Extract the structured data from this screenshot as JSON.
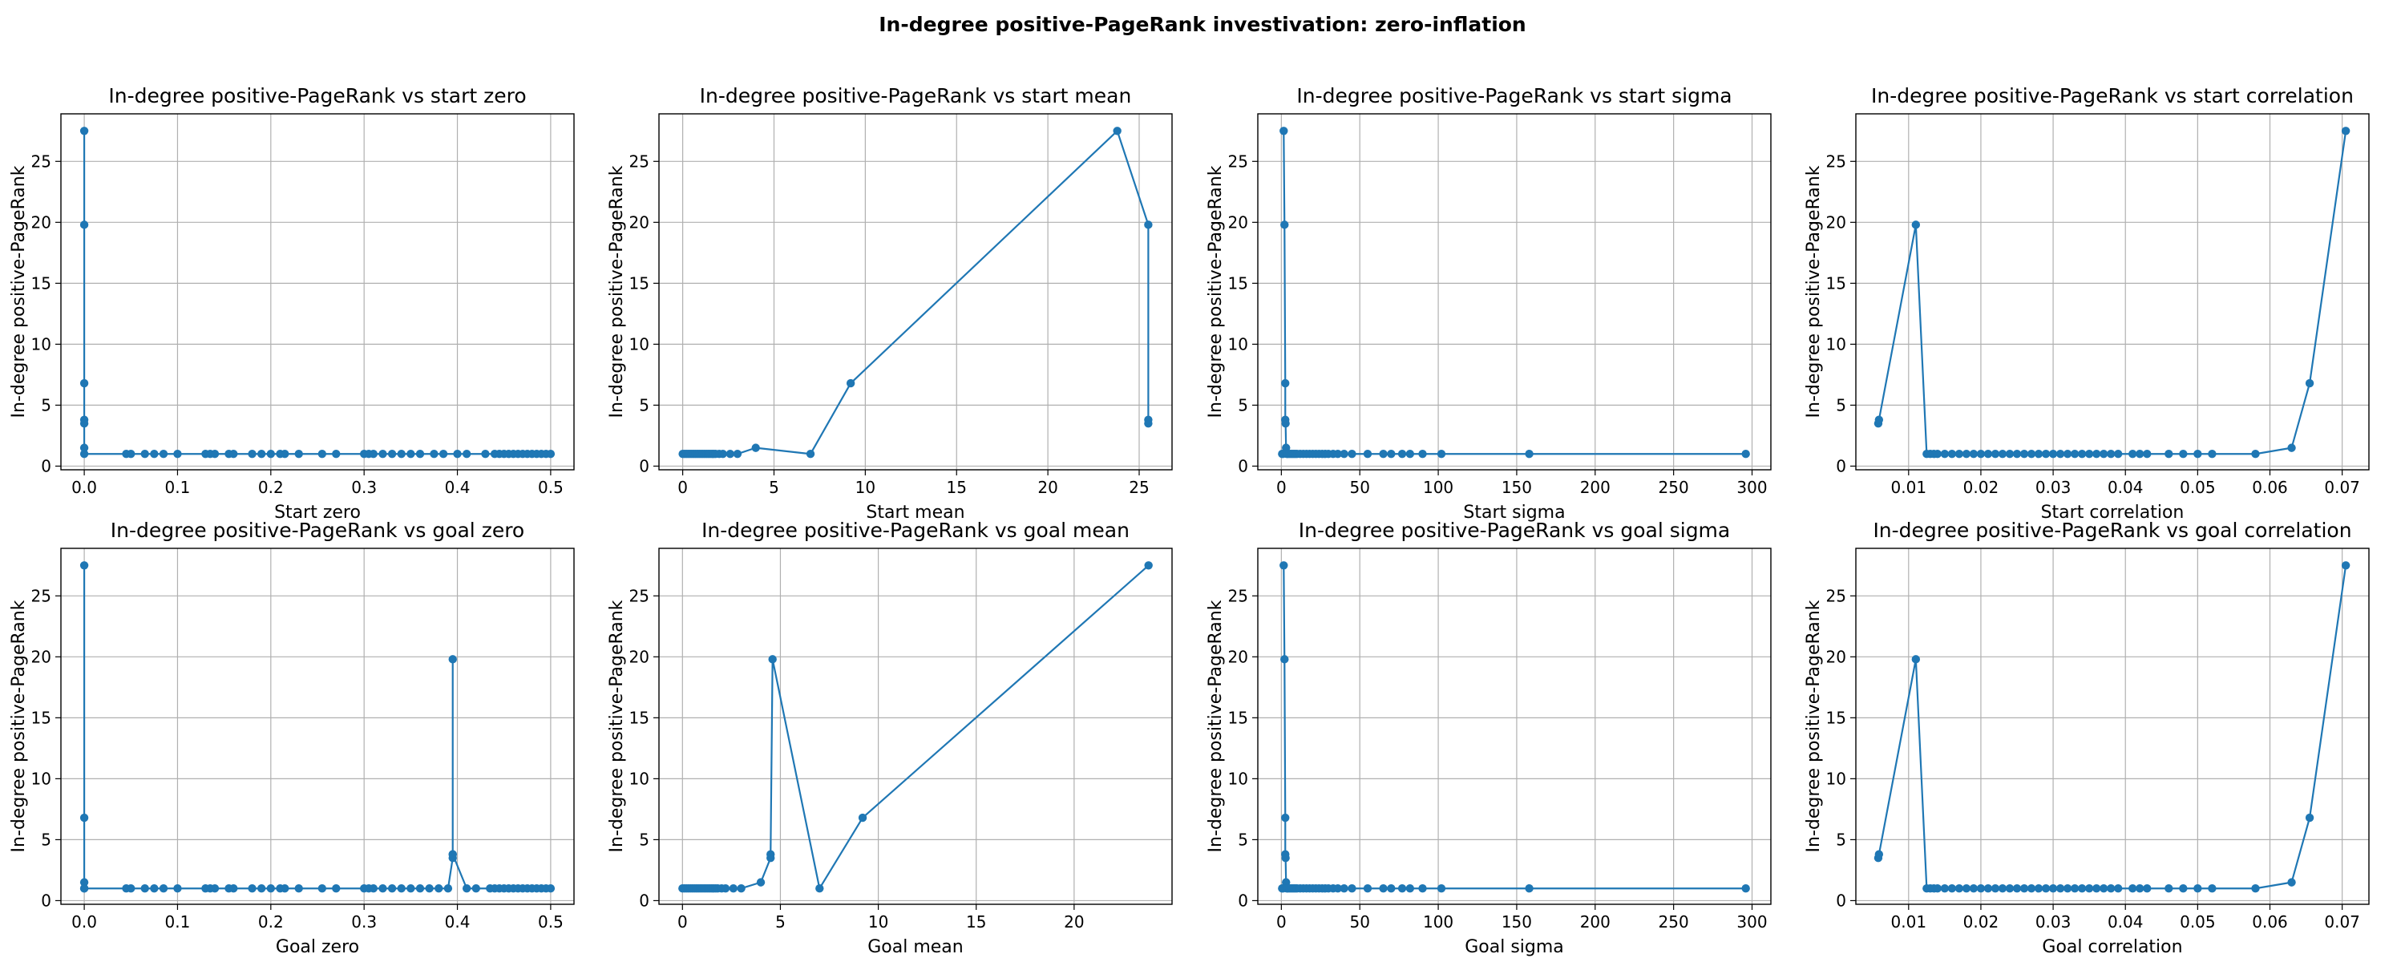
{
  "figure": {
    "suptitle": "In-degree positive-PageRank investivation: zero-inflation",
    "line_color": "#1f77b4"
  },
  "chart_data": [
    {
      "type": "line",
      "title": "In-degree positive-PageRank vs start zero",
      "xlabel": "Start zero",
      "ylabel": "In-degree positive-PageRank",
      "xlim": [
        -0.025,
        0.525
      ],
      "ylim": [
        -0.3,
        28.9
      ],
      "xticks": [
        0.0,
        0.1,
        0.2,
        0.3,
        0.4,
        0.5
      ],
      "xtick_labels": [
        "0.0",
        "0.1",
        "0.2",
        "0.3",
        "0.4",
        "0.5"
      ],
      "yticks": [
        0,
        5,
        10,
        15,
        20,
        25
      ],
      "ytick_labels": [
        "0",
        "5",
        "10",
        "15",
        "20",
        "25"
      ],
      "grid": true,
      "x": [
        0.0,
        0.0,
        0.0,
        0.0,
        0.0,
        0.0,
        0.0,
        0.045,
        0.05,
        0.065,
        0.075,
        0.085,
        0.1,
        0.13,
        0.135,
        0.14,
        0.155,
        0.16,
        0.18,
        0.19,
        0.2,
        0.21,
        0.215,
        0.23,
        0.255,
        0.27,
        0.3,
        0.305,
        0.31,
        0.32,
        0.33,
        0.34,
        0.35,
        0.36,
        0.375,
        0.385,
        0.4,
        0.41,
        0.43,
        0.44,
        0.445,
        0.45,
        0.455,
        0.46,
        0.465,
        0.47,
        0.475,
        0.48,
        0.485,
        0.49,
        0.495,
        0.5
      ],
      "y": [
        27.5,
        19.8,
        6.8,
        3.8,
        3.5,
        1.5,
        1.0,
        1,
        1,
        1,
        1,
        1,
        1,
        1,
        1,
        1,
        1,
        1,
        1,
        1,
        1,
        1,
        1,
        1,
        1,
        1,
        1,
        1,
        1,
        1,
        1,
        1,
        1,
        1,
        1,
        1,
        1,
        1,
        1,
        1,
        1,
        1,
        1,
        1,
        1,
        1,
        1,
        1,
        1,
        1,
        1,
        1
      ]
    },
    {
      "type": "line",
      "title": "In-degree positive-PageRank vs start mean",
      "xlabel": "Start mean",
      "ylabel": "In-degree positive-PageRank",
      "xlim": [
        -1.3,
        26.8
      ],
      "ylim": [
        -0.3,
        28.9
      ],
      "xticks": [
        0,
        5,
        10,
        15,
        20,
        25
      ],
      "xtick_labels": [
        "0",
        "5",
        "10",
        "15",
        "20",
        "25"
      ],
      "yticks": [
        0,
        5,
        10,
        15,
        20,
        25
      ],
      "ytick_labels": [
        "0",
        "5",
        "10",
        "15",
        "20",
        "25"
      ],
      "grid": true,
      "x": [
        0.0,
        0.1,
        0.2,
        0.3,
        0.4,
        0.5,
        0.6,
        0.7,
        0.8,
        0.9,
        1.0,
        1.1,
        1.2,
        1.3,
        1.4,
        1.5,
        1.6,
        1.7,
        1.8,
        2.0,
        2.2,
        2.6,
        3.0,
        4.0,
        7.0,
        9.2,
        23.8,
        25.5,
        25.5,
        25.5
      ],
      "y": [
        1,
        1,
        1,
        1,
        1,
        1,
        1,
        1,
        1,
        1,
        1,
        1,
        1,
        1,
        1,
        1,
        1,
        1,
        1,
        1,
        1,
        1,
        1,
        1.5,
        1.0,
        6.8,
        27.5,
        19.8,
        3.8,
        3.5
      ]
    },
    {
      "type": "line",
      "title": "In-degree positive-PageRank vs start sigma",
      "xlabel": "Start sigma",
      "ylabel": "In-degree positive-PageRank",
      "xlim": [
        -15,
        312
      ],
      "ylim": [
        -0.3,
        28.9
      ],
      "xticks": [
        0,
        50,
        100,
        150,
        200,
        250,
        300
      ],
      "xtick_labels": [
        "0",
        "50",
        "100",
        "150",
        "200",
        "250",
        "300"
      ],
      "yticks": [
        0,
        5,
        10,
        15,
        20,
        25
      ],
      "ytick_labels": [
        "0",
        "5",
        "10",
        "15",
        "20",
        "25"
      ],
      "grid": true,
      "x": [
        1.5,
        2.0,
        2.5,
        2.5,
        2.7,
        3.0,
        3.5,
        0.5,
        1.0,
        4,
        5,
        6,
        7,
        8,
        9,
        10,
        12,
        14,
        16,
        18,
        20,
        22,
        24,
        26,
        28,
        30,
        33,
        36,
        40,
        45,
        55,
        65,
        70,
        77,
        82,
        90,
        102,
        158,
        296
      ],
      "y": [
        27.5,
        19.8,
        6.8,
        3.8,
        3.5,
        1.5,
        1.0,
        1,
        1,
        1,
        1,
        1,
        1,
        1,
        1,
        1,
        1,
        1,
        1,
        1,
        1,
        1,
        1,
        1,
        1,
        1,
        1,
        1,
        1,
        1,
        1,
        1,
        1,
        1,
        1,
        1,
        1,
        1,
        1
      ]
    },
    {
      "type": "line",
      "title": "In-degree positive-PageRank vs start correlation",
      "xlabel": "Start correlation",
      "ylabel": "In-degree positive-PageRank",
      "xlim": [
        0.0027,
        0.0737
      ],
      "ylim": [
        -0.3,
        28.9
      ],
      "xticks": [
        0.01,
        0.02,
        0.03,
        0.04,
        0.05,
        0.06,
        0.07
      ],
      "xtick_labels": [
        "0.01",
        "0.02",
        "0.03",
        "0.04",
        "0.05",
        "0.06",
        "0.07"
      ],
      "yticks": [
        0,
        5,
        10,
        15,
        20,
        25
      ],
      "ytick_labels": [
        "0",
        "5",
        "10",
        "15",
        "20",
        "25"
      ],
      "grid": true,
      "x": [
        0.0058,
        0.0059,
        0.011,
        0.0125,
        0.013,
        0.0135,
        0.014,
        0.015,
        0.016,
        0.017,
        0.018,
        0.019,
        0.02,
        0.021,
        0.022,
        0.023,
        0.024,
        0.025,
        0.026,
        0.027,
        0.028,
        0.029,
        0.03,
        0.031,
        0.032,
        0.033,
        0.034,
        0.035,
        0.036,
        0.037,
        0.038,
        0.039,
        0.041,
        0.042,
        0.043,
        0.046,
        0.048,
        0.05,
        0.052,
        0.058,
        0.063,
        0.0655,
        0.0705
      ],
      "y": [
        3.5,
        3.8,
        19.8,
        1,
        1,
        1,
        1,
        1,
        1,
        1,
        1,
        1,
        1,
        1,
        1,
        1,
        1,
        1,
        1,
        1,
        1,
        1,
        1,
        1,
        1,
        1,
        1,
        1,
        1,
        1,
        1,
        1,
        1,
        1,
        1,
        1,
        1,
        1,
        1,
        1,
        1.5,
        6.8,
        27.5
      ]
    },
    {
      "type": "line",
      "title": "In-degree positive-PageRank vs goal zero",
      "xlabel": "Goal zero",
      "ylabel": "In-degree positive-PageRank",
      "xlim": [
        -0.025,
        0.525
      ],
      "ylim": [
        -0.3,
        28.9
      ],
      "xticks": [
        0.0,
        0.1,
        0.2,
        0.3,
        0.4,
        0.5
      ],
      "xtick_labels": [
        "0.0",
        "0.1",
        "0.2",
        "0.3",
        "0.4",
        "0.5"
      ],
      "yticks": [
        0,
        5,
        10,
        15,
        20,
        25
      ],
      "ytick_labels": [
        "0",
        "5",
        "10",
        "15",
        "20",
        "25"
      ],
      "grid": true,
      "x": [
        0.0,
        0.0,
        0.0,
        0.0,
        0.0,
        0.045,
        0.05,
        0.065,
        0.075,
        0.085,
        0.1,
        0.13,
        0.135,
        0.14,
        0.155,
        0.16,
        0.18,
        0.19,
        0.2,
        0.21,
        0.215,
        0.23,
        0.255,
        0.27,
        0.3,
        0.305,
        0.31,
        0.32,
        0.33,
        0.34,
        0.35,
        0.36,
        0.37,
        0.38,
        0.39,
        0.395,
        0.395,
        0.395,
        0.395,
        0.41,
        0.42,
        0.435,
        0.44,
        0.445,
        0.45,
        0.455,
        0.46,
        0.465,
        0.47,
        0.475,
        0.48,
        0.485,
        0.49,
        0.495,
        0.5
      ],
      "y": [
        27.5,
        6.8,
        1.5,
        1.0,
        1.0,
        1,
        1,
        1,
        1,
        1,
        1,
        1,
        1,
        1,
        1,
        1,
        1,
        1,
        1,
        1,
        1,
        1,
        1,
        1,
        1,
        1,
        1,
        1,
        1,
        1,
        1,
        1,
        1,
        1,
        1,
        3.5,
        3.8,
        19.8,
        3.8,
        1,
        1,
        1,
        1,
        1,
        1,
        1,
        1,
        1,
        1,
        1,
        1,
        1,
        1,
        1,
        1
      ]
    },
    {
      "type": "line",
      "title": "In-degree positive-PageRank vs goal mean",
      "xlabel": "Goal mean",
      "ylabel": "In-degree positive-PageRank",
      "xlim": [
        -1.2,
        25.0
      ],
      "ylim": [
        -0.3,
        28.9
      ],
      "xticks": [
        0,
        5,
        10,
        15,
        20
      ],
      "xtick_labels": [
        "0",
        "5",
        "10",
        "15",
        "20"
      ],
      "yticks": [
        0,
        5,
        10,
        15,
        20,
        25
      ],
      "ytick_labels": [
        "0",
        "5",
        "10",
        "15",
        "20",
        "25"
      ],
      "grid": true,
      "x": [
        0.0,
        0.1,
        0.2,
        0.3,
        0.4,
        0.5,
        0.6,
        0.7,
        0.8,
        0.9,
        1.0,
        1.1,
        1.2,
        1.3,
        1.4,
        1.5,
        1.6,
        1.7,
        1.8,
        2.0,
        2.2,
        2.6,
        3.0,
        4.0,
        4.5,
        4.5,
        4.6,
        7.0,
        9.2,
        23.8
      ],
      "y": [
        1,
        1,
        1,
        1,
        1,
        1,
        1,
        1,
        1,
        1,
        1,
        1,
        1,
        1,
        1,
        1,
        1,
        1,
        1,
        1,
        1,
        1,
        1,
        1.5,
        3.5,
        3.8,
        19.8,
        1.0,
        6.8,
        27.5
      ]
    },
    {
      "type": "line",
      "title": "In-degree positive-PageRank vs goal sigma",
      "xlabel": "Goal sigma",
      "ylabel": "In-degree positive-PageRank",
      "xlim": [
        -15,
        312
      ],
      "ylim": [
        -0.3,
        28.9
      ],
      "xticks": [
        0,
        50,
        100,
        150,
        200,
        250,
        300
      ],
      "xtick_labels": [
        "0",
        "50",
        "100",
        "150",
        "200",
        "250",
        "300"
      ],
      "yticks": [
        0,
        5,
        10,
        15,
        20,
        25
      ],
      "ytick_labels": [
        "0",
        "5",
        "10",
        "15",
        "20",
        "25"
      ],
      "grid": true,
      "x": [
        1.5,
        2.0,
        2.5,
        2.5,
        2.7,
        3.0,
        3.5,
        0.5,
        1.0,
        4,
        5,
        6,
        7,
        8,
        9,
        10,
        12,
        14,
        16,
        18,
        20,
        22,
        24,
        26,
        28,
        30,
        33,
        36,
        40,
        45,
        55,
        65,
        70,
        77,
        82,
        90,
        102,
        158,
        296
      ],
      "y": [
        27.5,
        19.8,
        6.8,
        3.8,
        3.5,
        1.5,
        1.0,
        1,
        1,
        1,
        1,
        1,
        1,
        1,
        1,
        1,
        1,
        1,
        1,
        1,
        1,
        1,
        1,
        1,
        1,
        1,
        1,
        1,
        1,
        1,
        1,
        1,
        1,
        1,
        1,
        1,
        1,
        1,
        1
      ]
    },
    {
      "type": "line",
      "title": "In-degree positive-PageRank vs goal correlation",
      "xlabel": "Goal correlation",
      "ylabel": "In-degree positive-PageRank",
      "xlim": [
        0.0027,
        0.0737
      ],
      "ylim": [
        -0.3,
        28.9
      ],
      "xticks": [
        0.01,
        0.02,
        0.03,
        0.04,
        0.05,
        0.06,
        0.07
      ],
      "xtick_labels": [
        "0.01",
        "0.02",
        "0.03",
        "0.04",
        "0.05",
        "0.06",
        "0.07"
      ],
      "yticks": [
        0,
        5,
        10,
        15,
        20,
        25
      ],
      "ytick_labels": [
        "0",
        "5",
        "10",
        "15",
        "20",
        "25"
      ],
      "grid": true,
      "x": [
        0.0058,
        0.0059,
        0.011,
        0.0125,
        0.013,
        0.0135,
        0.014,
        0.015,
        0.016,
        0.017,
        0.018,
        0.019,
        0.02,
        0.021,
        0.022,
        0.023,
        0.024,
        0.025,
        0.026,
        0.027,
        0.028,
        0.029,
        0.03,
        0.031,
        0.032,
        0.033,
        0.034,
        0.035,
        0.036,
        0.037,
        0.038,
        0.039,
        0.041,
        0.042,
        0.043,
        0.046,
        0.048,
        0.05,
        0.052,
        0.058,
        0.063,
        0.0655,
        0.0705
      ],
      "y": [
        3.5,
        3.8,
        19.8,
        1,
        1,
        1,
        1,
        1,
        1,
        1,
        1,
        1,
        1,
        1,
        1,
        1,
        1,
        1,
        1,
        1,
        1,
        1,
        1,
        1,
        1,
        1,
        1,
        1,
        1,
        1,
        1,
        1,
        1,
        1,
        1,
        1,
        1,
        1,
        1,
        1,
        1.5,
        6.8,
        27.5
      ]
    }
  ]
}
